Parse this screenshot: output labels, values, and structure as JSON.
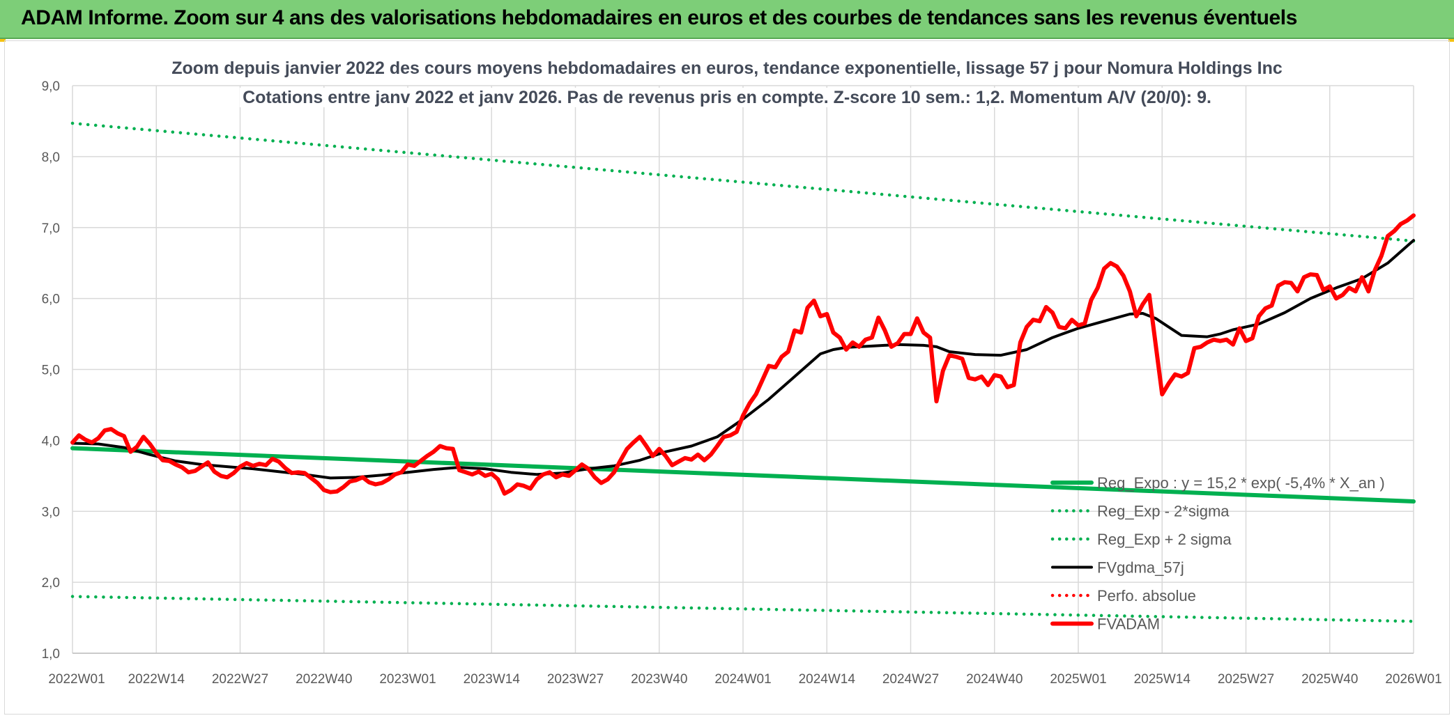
{
  "banner": {
    "title": "ADAM Informe. Zoom sur 4 ans des valorisations hebdomadaires en euros et des courbes de tendances sans les revenus éventuels",
    "background": "#7dce78"
  },
  "chart_data": {
    "type": "line",
    "title_line1": "Zoom depuis janvier 2022 des cours moyens hebdomadaires en euros, tendance exponentielle, lissage 57 j pour Nomura Holdings Inc",
    "title_line2": "Cotations entre janv 2022 et janv 2026. Pas de revenus pris en compte. Z-score 10 sem.: 1,2. Momentum A/V (20/0): 9.",
    "ylim": [
      1.0,
      9.0
    ],
    "yticks": [
      "1,0",
      "2,0",
      "3,0",
      "4,0",
      "5,0",
      "6,0",
      "7,0",
      "8,0",
      "9,0"
    ],
    "x_range_weeks": [
      0,
      208
    ],
    "x_ticks": [
      {
        "week": 0,
        "label": "2022W01"
      },
      {
        "week": 13,
        "label": "2022W14"
      },
      {
        "week": 26,
        "label": "2022W27"
      },
      {
        "week": 39,
        "label": "2022W40"
      },
      {
        "week": 52,
        "label": "2023W01"
      },
      {
        "week": 65,
        "label": "2023W14"
      },
      {
        "week": 78,
        "label": "2023W27"
      },
      {
        "week": 91,
        "label": "2023W40"
      },
      {
        "week": 104,
        "label": "2024W01"
      },
      {
        "week": 117,
        "label": "2024W14"
      },
      {
        "week": 130,
        "label": "2024W27"
      },
      {
        "week": 143,
        "label": "2024W40"
      },
      {
        "week": 156,
        "label": "2025W01"
      },
      {
        "week": 169,
        "label": "2025W14"
      },
      {
        "week": 182,
        "label": "2025W27"
      },
      {
        "week": 195,
        "label": "2025W40"
      },
      {
        "week": 208,
        "label": "2026W01"
      }
    ],
    "grid": true,
    "legend_position": "bottom-right",
    "series": [
      {
        "name": "Reg_Expo : y = 15,2 * exp( -5,4% *  X_an )",
        "style": "solid-thick",
        "color": "#00b050",
        "points": [
          [
            0,
            3.89
          ],
          [
            208,
            3.14
          ]
        ]
      },
      {
        "name": "Reg_Exp - 2*sigma",
        "style": "dotted",
        "color": "#00b050",
        "points": [
          [
            0,
            1.8
          ],
          [
            208,
            1.45
          ]
        ]
      },
      {
        "name": "Reg_Exp + 2 sigma",
        "style": "dotted",
        "color": "#00b050",
        "points": [
          [
            0,
            8.47
          ],
          [
            208,
            6.81
          ]
        ]
      },
      {
        "name": "FVgdma_57j",
        "style": "solid",
        "color": "#000000",
        "points": [
          [
            0,
            3.96
          ],
          [
            4,
            3.95
          ],
          [
            8,
            3.9
          ],
          [
            12,
            3.8
          ],
          [
            16,
            3.71
          ],
          [
            20,
            3.66
          ],
          [
            24,
            3.63
          ],
          [
            28,
            3.6
          ],
          [
            32,
            3.56
          ],
          [
            36,
            3.52
          ],
          [
            40,
            3.47
          ],
          [
            44,
            3.48
          ],
          [
            48,
            3.51
          ],
          [
            52,
            3.55
          ],
          [
            56,
            3.59
          ],
          [
            60,
            3.62
          ],
          [
            64,
            3.6
          ],
          [
            68,
            3.55
          ],
          [
            72,
            3.52
          ],
          [
            76,
            3.54
          ],
          [
            80,
            3.6
          ],
          [
            84,
            3.64
          ],
          [
            88,
            3.72
          ],
          [
            92,
            3.84
          ],
          [
            96,
            3.92
          ],
          [
            100,
            4.05
          ],
          [
            104,
            4.3
          ],
          [
            108,
            4.58
          ],
          [
            112,
            4.9
          ],
          [
            116,
            5.22
          ],
          [
            118,
            5.28
          ],
          [
            120,
            5.31
          ],
          [
            124,
            5.33
          ],
          [
            128,
            5.35
          ],
          [
            132,
            5.34
          ],
          [
            134,
            5.32
          ],
          [
            136,
            5.25
          ],
          [
            140,
            5.21
          ],
          [
            144,
            5.2
          ],
          [
            148,
            5.28
          ],
          [
            152,
            5.45
          ],
          [
            156,
            5.58
          ],
          [
            160,
            5.68
          ],
          [
            164,
            5.78
          ],
          [
            166,
            5.79
          ],
          [
            168,
            5.72
          ],
          [
            170,
            5.6
          ],
          [
            172,
            5.48
          ],
          [
            176,
            5.46
          ],
          [
            178,
            5.5
          ],
          [
            180,
            5.56
          ],
          [
            184,
            5.64
          ],
          [
            188,
            5.8
          ],
          [
            192,
            6.0
          ],
          [
            196,
            6.15
          ],
          [
            200,
            6.28
          ],
          [
            204,
            6.5
          ],
          [
            208,
            6.82
          ]
        ]
      },
      {
        "name": "Perfo. absolue",
        "style": "dotted",
        "color": "#ff0000",
        "points": []
      },
      {
        "name": "FVADAM",
        "style": "solid-thick",
        "color": "#ff0000",
        "points": [
          [
            0,
            3.97
          ],
          [
            1,
            4.07
          ],
          [
            2,
            4.01
          ],
          [
            3,
            3.97
          ],
          [
            4,
            4.03
          ],
          [
            5,
            4.14
          ],
          [
            6,
            4.16
          ],
          [
            7,
            4.1
          ],
          [
            8,
            4.06
          ],
          [
            9,
            3.84
          ],
          [
            10,
            3.91
          ],
          [
            11,
            4.05
          ],
          [
            12,
            3.95
          ],
          [
            13,
            3.82
          ],
          [
            14,
            3.72
          ],
          [
            15,
            3.71
          ],
          [
            16,
            3.66
          ],
          [
            17,
            3.62
          ],
          [
            18,
            3.55
          ],
          [
            19,
            3.57
          ],
          [
            20,
            3.63
          ],
          [
            21,
            3.69
          ],
          [
            22,
            3.56
          ],
          [
            23,
            3.5
          ],
          [
            24,
            3.48
          ],
          [
            25,
            3.54
          ],
          [
            26,
            3.63
          ],
          [
            27,
            3.68
          ],
          [
            28,
            3.64
          ],
          [
            29,
            3.67
          ],
          [
            30,
            3.65
          ],
          [
            31,
            3.74
          ],
          [
            32,
            3.7
          ],
          [
            33,
            3.61
          ],
          [
            34,
            3.54
          ],
          [
            35,
            3.55
          ],
          [
            36,
            3.54
          ],
          [
            37,
            3.47
          ],
          [
            38,
            3.4
          ],
          [
            39,
            3.3
          ],
          [
            40,
            3.27
          ],
          [
            41,
            3.28
          ],
          [
            42,
            3.34
          ],
          [
            43,
            3.42
          ],
          [
            44,
            3.44
          ],
          [
            45,
            3.48
          ],
          [
            46,
            3.41
          ],
          [
            47,
            3.38
          ],
          [
            48,
            3.4
          ],
          [
            49,
            3.45
          ],
          [
            50,
            3.52
          ],
          [
            51,
            3.55
          ],
          [
            52,
            3.66
          ],
          [
            53,
            3.64
          ],
          [
            54,
            3.71
          ],
          [
            55,
            3.78
          ],
          [
            56,
            3.84
          ],
          [
            57,
            3.92
          ],
          [
            58,
            3.89
          ],
          [
            59,
            3.88
          ],
          [
            60,
            3.58
          ],
          [
            61,
            3.55
          ],
          [
            62,
            3.52
          ],
          [
            63,
            3.56
          ],
          [
            64,
            3.5
          ],
          [
            65,
            3.53
          ],
          [
            66,
            3.45
          ],
          [
            67,
            3.25
          ],
          [
            68,
            3.3
          ],
          [
            69,
            3.38
          ],
          [
            70,
            3.36
          ],
          [
            71,
            3.32
          ],
          [
            72,
            3.45
          ],
          [
            73,
            3.52
          ],
          [
            74,
            3.55
          ],
          [
            75,
            3.48
          ],
          [
            76,
            3.52
          ],
          [
            77,
            3.5
          ],
          [
            78,
            3.58
          ],
          [
            79,
            3.66
          ],
          [
            80,
            3.6
          ],
          [
            81,
            3.48
          ],
          [
            82,
            3.4
          ],
          [
            83,
            3.45
          ],
          [
            84,
            3.55
          ],
          [
            85,
            3.72
          ],
          [
            86,
            3.88
          ],
          [
            87,
            3.97
          ],
          [
            88,
            4.05
          ],
          [
            89,
            3.92
          ],
          [
            90,
            3.78
          ],
          [
            91,
            3.88
          ],
          [
            92,
            3.78
          ],
          [
            93,
            3.65
          ],
          [
            94,
            3.7
          ],
          [
            95,
            3.75
          ],
          [
            96,
            3.73
          ],
          [
            97,
            3.8
          ],
          [
            98,
            3.72
          ],
          [
            99,
            3.8
          ],
          [
            100,
            3.92
          ],
          [
            101,
            4.05
          ],
          [
            102,
            4.07
          ],
          [
            103,
            4.12
          ],
          [
            104,
            4.35
          ],
          [
            105,
            4.52
          ],
          [
            106,
            4.65
          ],
          [
            107,
            4.85
          ],
          [
            108,
            5.05
          ],
          [
            109,
            5.03
          ],
          [
            110,
            5.18
          ],
          [
            111,
            5.25
          ],
          [
            112,
            5.55
          ],
          [
            113,
            5.52
          ],
          [
            114,
            5.87
          ],
          [
            115,
            5.97
          ],
          [
            116,
            5.75
          ],
          [
            117,
            5.78
          ],
          [
            118,
            5.52
          ],
          [
            119,
            5.45
          ],
          [
            120,
            5.28
          ],
          [
            121,
            5.38
          ],
          [
            122,
            5.32
          ],
          [
            123,
            5.42
          ],
          [
            124,
            5.45
          ],
          [
            125,
            5.73
          ],
          [
            126,
            5.55
          ],
          [
            127,
            5.32
          ],
          [
            128,
            5.37
          ],
          [
            129,
            5.5
          ],
          [
            130,
            5.5
          ],
          [
            131,
            5.72
          ],
          [
            132,
            5.52
          ],
          [
            133,
            5.45
          ],
          [
            134,
            4.55
          ],
          [
            135,
            4.98
          ],
          [
            136,
            5.2
          ],
          [
            137,
            5.18
          ],
          [
            138,
            5.15
          ],
          [
            139,
            4.88
          ],
          [
            140,
            4.86
          ],
          [
            141,
            4.9
          ],
          [
            142,
            4.78
          ],
          [
            143,
            4.92
          ],
          [
            144,
            4.9
          ],
          [
            145,
            4.75
          ],
          [
            146,
            4.78
          ],
          [
            147,
            5.38
          ],
          [
            148,
            5.6
          ],
          [
            149,
            5.7
          ],
          [
            150,
            5.68
          ],
          [
            151,
            5.88
          ],
          [
            152,
            5.8
          ],
          [
            153,
            5.6
          ],
          [
            154,
            5.58
          ],
          [
            155,
            5.7
          ],
          [
            156,
            5.62
          ],
          [
            157,
            5.65
          ],
          [
            158,
            5.98
          ],
          [
            159,
            6.15
          ],
          [
            160,
            6.42
          ],
          [
            161,
            6.5
          ],
          [
            162,
            6.45
          ],
          [
            163,
            6.32
          ],
          [
            164,
            6.1
          ],
          [
            165,
            5.75
          ],
          [
            166,
            5.92
          ],
          [
            167,
            6.05
          ],
          [
            168,
            5.35
          ],
          [
            169,
            4.65
          ],
          [
            170,
            4.8
          ],
          [
            171,
            4.93
          ],
          [
            172,
            4.9
          ],
          [
            173,
            4.95
          ],
          [
            174,
            5.3
          ],
          [
            175,
            5.32
          ],
          [
            176,
            5.38
          ],
          [
            177,
            5.42
          ],
          [
            178,
            5.4
          ],
          [
            179,
            5.42
          ],
          [
            180,
            5.35
          ],
          [
            181,
            5.58
          ],
          [
            182,
            5.4
          ],
          [
            183,
            5.44
          ],
          [
            184,
            5.75
          ],
          [
            185,
            5.86
          ],
          [
            186,
            5.9
          ],
          [
            187,
            6.18
          ],
          [
            188,
            6.23
          ],
          [
            189,
            6.22
          ],
          [
            190,
            6.1
          ],
          [
            191,
            6.3
          ],
          [
            192,
            6.34
          ],
          [
            193,
            6.33
          ],
          [
            194,
            6.12
          ],
          [
            195,
            6.17
          ],
          [
            196,
            6.0
          ],
          [
            197,
            6.05
          ],
          [
            198,
            6.15
          ],
          [
            199,
            6.1
          ],
          [
            200,
            6.3
          ],
          [
            201,
            6.1
          ],
          [
            202,
            6.4
          ],
          [
            203,
            6.6
          ],
          [
            204,
            6.88
          ],
          [
            205,
            6.95
          ],
          [
            206,
            7.05
          ],
          [
            207,
            7.1
          ],
          [
            208,
            7.17
          ]
        ]
      }
    ]
  }
}
